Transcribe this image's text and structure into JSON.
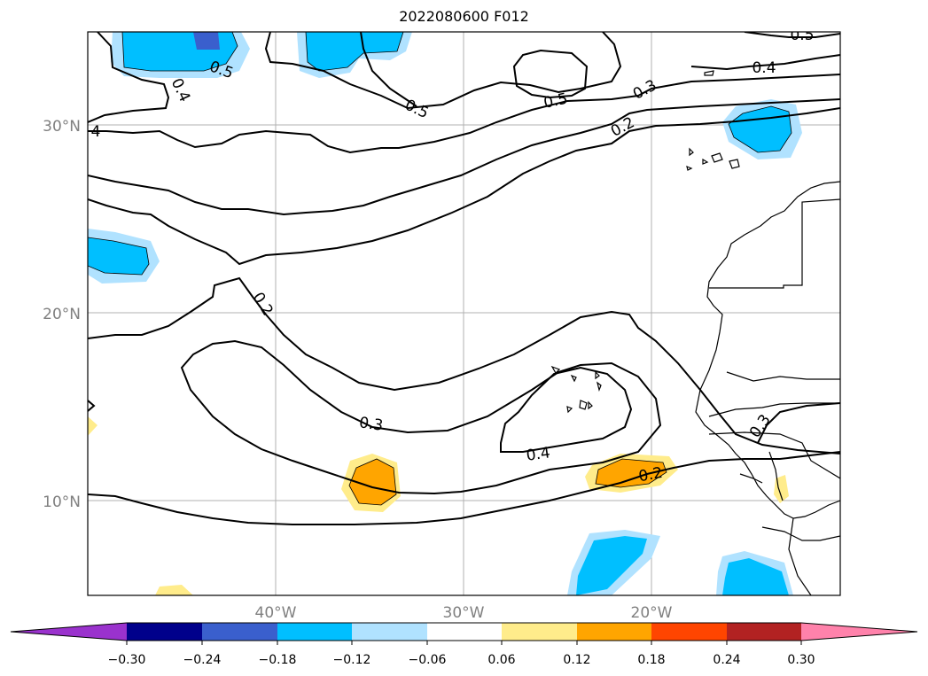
{
  "title": "2022080600 F012",
  "lat_labels": [
    "30°N",
    "20°N",
    "10°N"
  ],
  "lon_labels": [
    "40°W",
    "30°W",
    "20°W"
  ],
  "contour_labels": [
    "0.5",
    "0.4",
    "4",
    "0.5",
    "0.5",
    "0.3",
    "0.2",
    "0.5",
    "0.4",
    "0.2",
    "0.3",
    "0.4",
    "0.2",
    "0.3"
  ],
  "colorbar": {
    "colors": [
      "#9a32cd",
      "#00008b",
      "#3a5fcd",
      "#00bfff",
      "#b0e2ff",
      "#ffffff",
      "#ffec8b",
      "#ffa500",
      "#ff4500",
      "#b22222",
      "#ff82ab"
    ],
    "ticks": [
      "−0.30",
      "−0.24",
      "−0.18",
      "−0.12",
      "−0.06",
      "0.06",
      "0.12",
      "0.18",
      "0.24",
      "0.30"
    ]
  }
}
